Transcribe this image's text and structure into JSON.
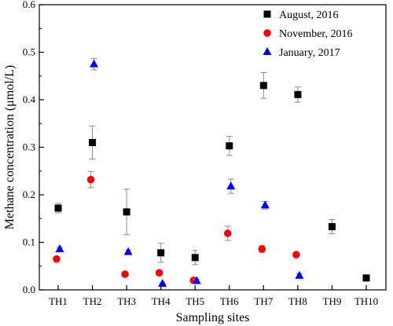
{
  "chart_data": {
    "type": "scatter",
    "title": "",
    "xlabel": "Sampling sites",
    "ylabel": "Methane concentration (μmol/L)",
    "categories": [
      "TH1",
      "TH2",
      "TH3",
      "TH4",
      "TH5",
      "TH6",
      "TH7",
      "TH8",
      "TH9",
      "TH10"
    ],
    "ylim": [
      0,
      0.6
    ],
    "yticks": [
      "0.0",
      "0.1",
      "0.2",
      "0.3",
      "0.4",
      "0.5",
      "0.6"
    ],
    "legend_position": "top-right",
    "grid": false,
    "series": [
      {
        "name": "August, 2016",
        "color": "#000000",
        "marker": "square",
        "values": [
          0.172,
          0.31,
          0.164,
          0.078,
          0.068,
          0.303,
          0.43,
          0.411,
          0.133,
          0.025
        ],
        "errors": [
          0.01,
          0.035,
          0.048,
          0.02,
          0.015,
          0.02,
          0.027,
          0.016,
          0.015,
          0.006
        ]
      },
      {
        "name": "November, 2016",
        "color": "#ff0000",
        "marker": "circle",
        "values": [
          0.065,
          0.232,
          0.033,
          0.036,
          0.02,
          0.119,
          0.086,
          0.074,
          null,
          null
        ],
        "errors": [
          0.003,
          0.017,
          0.004,
          0.003,
          0.003,
          0.015,
          0.007,
          0.004,
          null,
          null
        ]
      },
      {
        "name": "January, 2017",
        "color": "#0000ff",
        "marker": "triangle",
        "values": [
          0.086,
          0.475,
          0.08,
          0.013,
          0.019,
          0.218,
          0.178,
          0.03,
          null,
          null
        ],
        "errors": [
          0.003,
          0.012,
          0.004,
          0.002,
          0.003,
          0.015,
          0.008,
          0.004,
          null,
          null
        ]
      }
    ]
  }
}
